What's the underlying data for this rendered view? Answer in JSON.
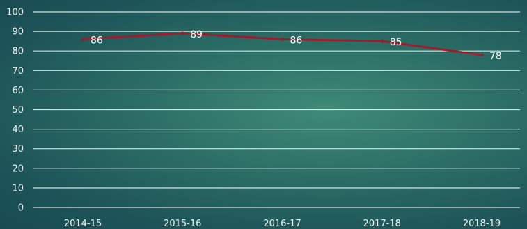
{
  "chart_data": {
    "type": "line",
    "title": "",
    "xlabel": "",
    "ylabel": "",
    "categories": [
      "2014-15",
      "2015-16",
      "2016-17",
      "2017-18",
      "2018-19"
    ],
    "series": [
      {
        "values": [
          86,
          89,
          86,
          85,
          78
        ]
      }
    ],
    "ylim": [
      0,
      100
    ],
    "yticks": [
      "0",
      "10",
      "20",
      "30",
      "40",
      "50",
      "60",
      "70",
      "80",
      "90",
      "100"
    ],
    "grid": true,
    "legend": "none",
    "data_labels": true
  },
  "colors": {
    "series": "#9e1d2b",
    "marker": "#7e2a2f"
  }
}
